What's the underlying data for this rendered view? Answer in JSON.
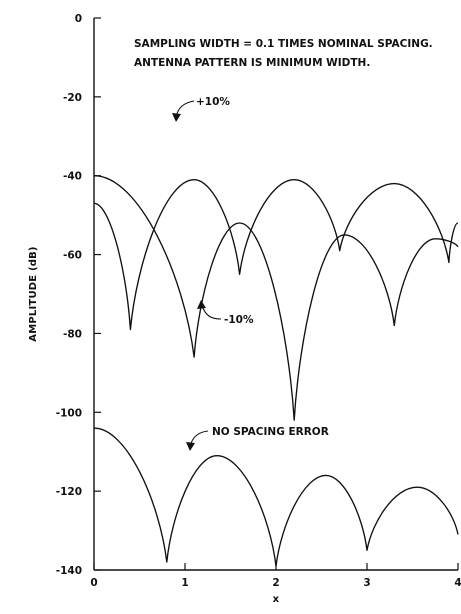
{
  "chart_data": {
    "type": "line",
    "title": "",
    "xlabel": "x",
    "ylabel": "AMPLITUDE (dB)",
    "xlim": [
      0,
      4
    ],
    "ylim": [
      -140,
      0
    ],
    "grid": false,
    "x_ticks": [
      "0",
      "1",
      "2",
      "3",
      "4"
    ],
    "y_ticks": [
      "0",
      "-20",
      "-40",
      "-60",
      "-80",
      "-100",
      "-120",
      "-140"
    ],
    "annotations": {
      "note_line1": "SAMPLING WIDTH = 0.1 TIMES NOMINAL SPACING.",
      "note_line2": "ANTENNA PATTERN IS MINIMUM WIDTH."
    },
    "series": [
      {
        "name": "+10%",
        "x": [
          0,
          0.4,
          1.1,
          1.6,
          2.2,
          2.7,
          3.3,
          3.9,
          4.0
        ],
        "y": [
          -47,
          -79,
          -41,
          -65,
          -41,
          -59,
          -42,
          -62,
          -52
        ]
      },
      {
        "name": "-10%",
        "x": [
          0,
          1.1,
          1.6,
          2.2,
          2.75,
          3.3,
          3.75,
          4.0
        ],
        "y": [
          -40,
          -86,
          -52,
          -102,
          -55,
          -78,
          -56,
          -58
        ]
      },
      {
        "name": "NO SPACING ERROR",
        "x": [
          0,
          0.8,
          1.35,
          2.0,
          2.55,
          3.0,
          3.55,
          4.0
        ],
        "y": [
          -104,
          -138,
          -111,
          -139,
          -116,
          -135,
          -119,
          -131
        ]
      }
    ]
  }
}
